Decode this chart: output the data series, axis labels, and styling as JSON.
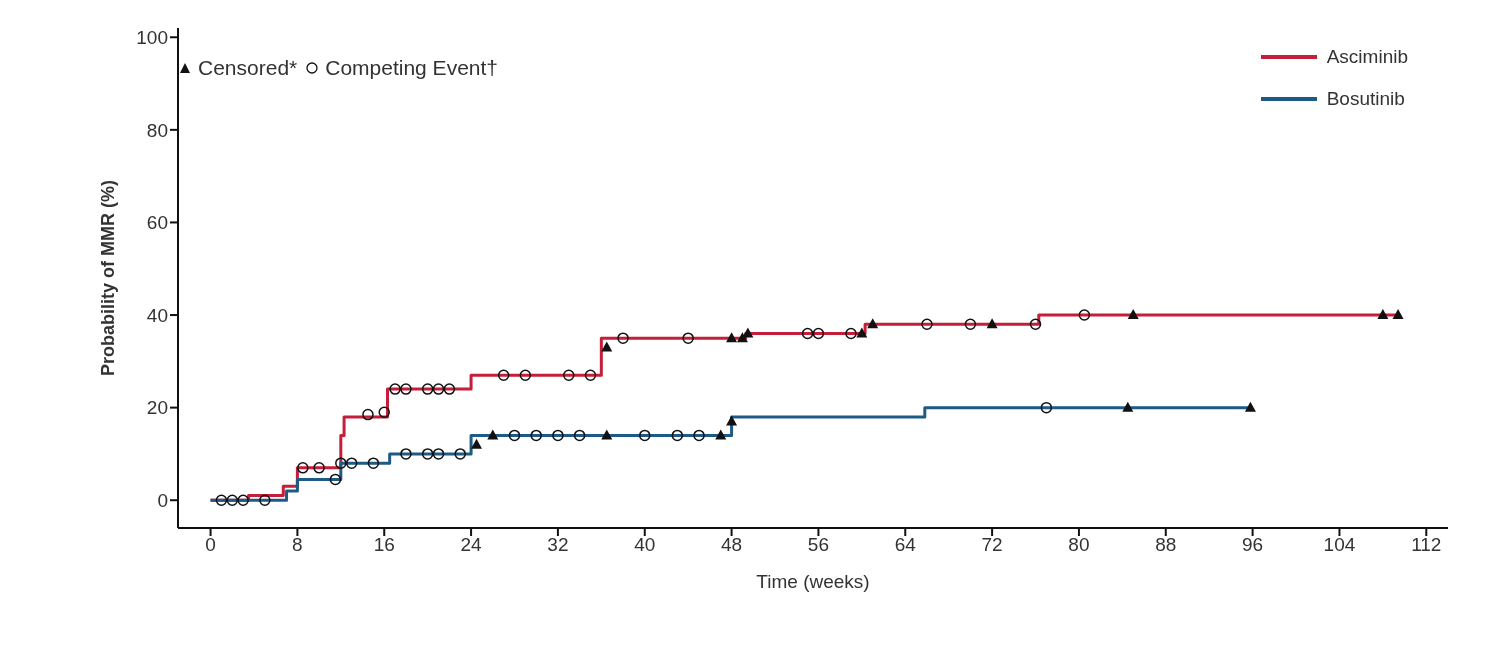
{
  "chart_data": {
    "type": "step",
    "xlabel": "Time (weeks)",
    "ylabel": "Probability of MMR (%)",
    "xlim": [
      -3,
      114
    ],
    "xticks": [
      0,
      8,
      16,
      24,
      32,
      40,
      48,
      56,
      64,
      72,
      80,
      88,
      96,
      104,
      112
    ],
    "ylim": [
      -6,
      102
    ],
    "yticks": [
      0,
      20,
      40,
      60,
      80,
      100
    ],
    "grid": false,
    "legend": "top right",
    "line_style": "solid",
    "series": [
      {
        "name": "Asciminib",
        "color": "#c41e3a",
        "marker": "none",
        "x": [
          0,
          3.5,
          6.7,
          8,
          12,
          12.3,
          16.3,
          24,
          36,
          49.3,
          60.3,
          76.3,
          109.4
        ],
        "values": [
          0,
          1,
          3,
          7,
          14,
          18,
          24,
          27,
          35,
          36,
          38,
          40,
          40
        ]
      },
      {
        "name": "Bosutinib",
        "color": "#1d5a85",
        "marker": "none",
        "x": [
          0,
          7,
          8,
          12,
          16.5,
          24,
          48,
          65.8,
          95.8
        ],
        "values": [
          0,
          2,
          4.5,
          8,
          10,
          14,
          18,
          20,
          20
        ]
      },
      {
        "name": "Censored*",
        "type": "scatter",
        "color": "#111111",
        "marker": "triangle",
        "x": [
          36.5,
          48,
          49,
          49.5,
          60,
          61,
          72,
          85,
          108,
          109.4,
          24.5,
          26,
          36.5,
          47,
          48,
          84.5,
          95.8
        ],
        "values": [
          33,
          35,
          35,
          36,
          36,
          38,
          38,
          40,
          40,
          40,
          12,
          14,
          14,
          14,
          17,
          20,
          20
        ]
      },
      {
        "name": "Competing Event†",
        "type": "scatter",
        "color": "#111111",
        "marker": "circle",
        "x": [
          8.5,
          10,
          12,
          14.5,
          16,
          17,
          18,
          20,
          21,
          22,
          27,
          29,
          33,
          35,
          38,
          44,
          55,
          56,
          59,
          66,
          70,
          76,
          80.5,
          1,
          2,
          3,
          5,
          11.5,
          13,
          15,
          18,
          20,
          21,
          23,
          28,
          30,
          32,
          34,
          40,
          43,
          45,
          77
        ],
        "values": [
          7,
          7,
          8,
          18.5,
          19,
          24,
          24,
          24,
          24,
          24,
          27,
          27,
          27,
          27,
          35,
          35,
          36,
          36,
          36,
          38,
          38,
          38,
          40,
          0,
          0,
          0,
          0,
          4.5,
          8,
          8,
          10,
          10,
          10,
          10,
          14,
          14,
          14,
          14,
          14,
          14,
          14,
          20
        ]
      }
    ]
  }
}
